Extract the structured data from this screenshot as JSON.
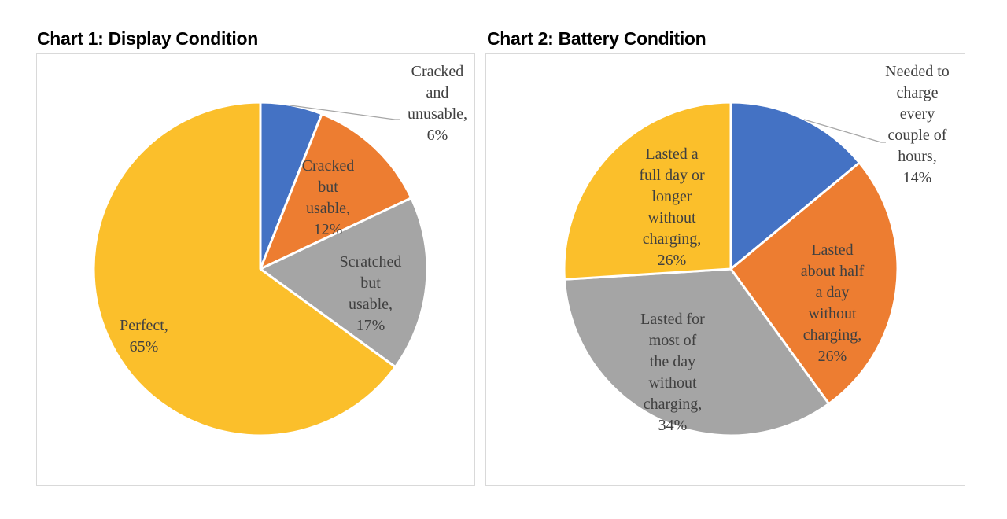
{
  "chart_data": [
    {
      "type": "pie",
      "title": "Chart 1: Display Condition",
      "slices": [
        {
          "label": "Cracked and unusable",
          "value": 6,
          "percent_label": "6%",
          "color": "#4472C4"
        },
        {
          "label": "Cracked but usable",
          "value": 12,
          "percent_label": "12%",
          "color": "#ED7D31"
        },
        {
          "label": "Scratched but usable",
          "value": 17,
          "percent_label": "17%",
          "color": "#A5A5A5"
        },
        {
          "label": "Perfect",
          "value": 65,
          "percent_label": "65%",
          "color": "#FBBF2B"
        }
      ],
      "label_lines": [
        [
          "Cracked",
          "and",
          "unusable,",
          "6%"
        ],
        [
          "Cracked",
          "but",
          "usable,",
          "12%"
        ],
        [
          "Scratched",
          "but",
          "usable,",
          "17%"
        ],
        [
          "Perfect,",
          "65%"
        ]
      ]
    },
    {
      "type": "pie",
      "title": "Chart 2: Battery Condition",
      "slices": [
        {
          "label": "Needed to charge every couple of hours",
          "value": 14,
          "percent_label": "14%",
          "color": "#4472C4"
        },
        {
          "label": "Lasted about half a day without charging",
          "value": 26,
          "percent_label": "26%",
          "color": "#ED7D31"
        },
        {
          "label": "Lasted for most of the day without charging",
          "value": 34,
          "percent_label": "34%",
          "color": "#A5A5A5"
        },
        {
          "label": "Lasted a full day or longer without charging",
          "value": 26,
          "percent_label": "26%",
          "color": "#FBBF2B"
        }
      ],
      "label_lines": [
        [
          "Needed to",
          "charge",
          "every",
          "couple of",
          "hours,",
          "14%"
        ],
        [
          "Lasted",
          "about half",
          "a day",
          "without",
          "charging,",
          "26%"
        ],
        [
          "Lasted for",
          "most of",
          "the day",
          "without",
          "charging,",
          "34%"
        ],
        [
          "Lasted a",
          "full day or",
          "longer",
          "without",
          "charging,",
          "26%"
        ]
      ]
    }
  ]
}
